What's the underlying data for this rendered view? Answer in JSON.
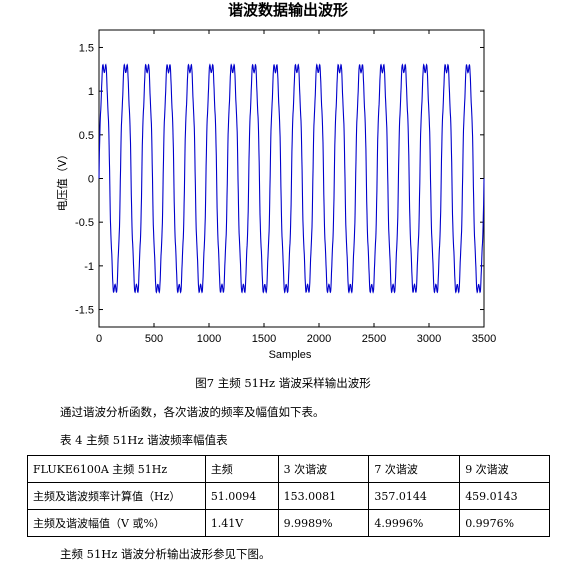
{
  "chart_data": {
    "type": "line",
    "title": "谐波数据输出波形",
    "xlabel": "Samples",
    "ylabel": "电压值（V）",
    "xlim": [
      0,
      3500
    ],
    "ylim": [
      -1.7,
      1.7
    ],
    "xticks": [
      0,
      500,
      1000,
      1500,
      2000,
      2500,
      3000,
      3500
    ],
    "yticks": [
      1.5,
      1,
      0.5,
      0,
      -0.5,
      -1,
      -1.5
    ],
    "ytick_labels": [
      "1.5",
      "1",
      "0.5",
      "0",
      "-0.5",
      "-1",
      "-1.5"
    ],
    "grid": false,
    "color": "#0000cc",
    "signal": {
      "fundamental_cycles_shown": 18,
      "harmonics": [
        {
          "order": 1,
          "amplitude": 1.41
        },
        {
          "order": 3,
          "amplitude": 0.141
        },
        {
          "order": 7,
          "amplitude": 0.0705
        },
        {
          "order": 9,
          "amplitude": 0.0141
        }
      ]
    }
  },
  "caption": "图7  主频 51Hz 谐波采样输出波形",
  "paragraph": "通过谐波分析函数，各次谐波的频率及幅值如下表。",
  "table_title": "表 4  主频 51Hz 谐波频率幅值表",
  "table": {
    "rows": [
      [
        "FLUKE6100A 主频 51Hz",
        "主频",
        "3 次谐波",
        "7 次谐波",
        "9 次谐波"
      ],
      [
        "主频及谐波频率计算值（Hz）",
        "51.0094",
        "153.0081",
        "357.0144",
        "459.0143"
      ],
      [
        "主频及谐波幅值（V 或%）",
        "1.41V",
        "9.9989%",
        "4.9996%",
        "0.9976%"
      ]
    ]
  },
  "footer": "主频 51Hz 谐波分析输出波形参见下图。"
}
